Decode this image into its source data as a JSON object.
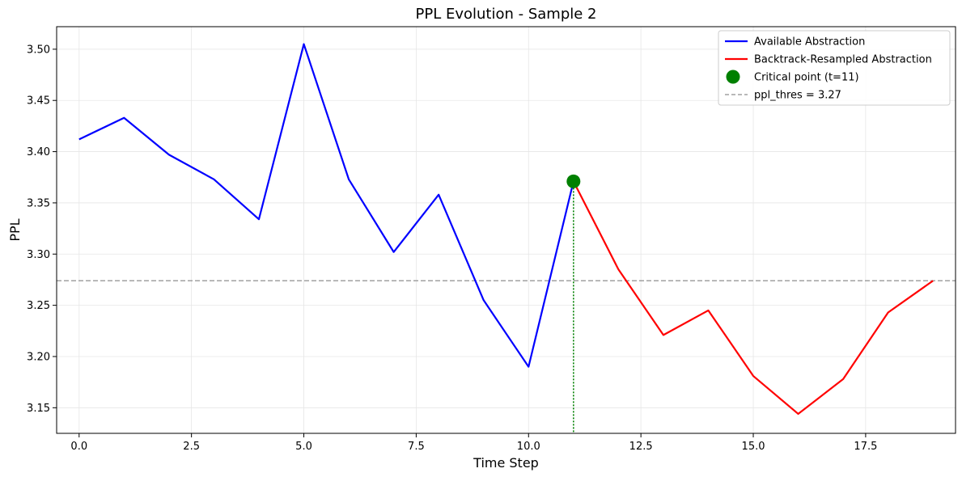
{
  "chart_data": {
    "type": "line",
    "title": "PPL Evolution - Sample 2",
    "xlabel": "Time Step",
    "ylabel": "PPL",
    "xlim": [
      -0.5,
      19.5
    ],
    "ylim": [
      3.125,
      3.522
    ],
    "xticks": [
      0.0,
      2.5,
      5.0,
      7.5,
      10.0,
      12.5,
      15.0,
      17.5
    ],
    "xtick_labels": [
      "0.0",
      "2.5",
      "5.0",
      "7.5",
      "10.0",
      "12.5",
      "15.0",
      "17.5"
    ],
    "yticks": [
      3.15,
      3.2,
      3.25,
      3.3,
      3.35,
      3.4,
      3.45,
      3.5
    ],
    "ytick_labels": [
      "3.15",
      "3.20",
      "3.25",
      "3.30",
      "3.35",
      "3.40",
      "3.45",
      "3.50"
    ],
    "grid": true,
    "legend_position": "top-right",
    "series": [
      {
        "name": "Available Abstraction",
        "color": "#0000ff",
        "x": [
          0,
          1,
          2,
          3,
          4,
          5,
          6,
          7,
          8,
          9,
          10,
          11
        ],
        "y": [
          3.412,
          3.433,
          3.397,
          3.373,
          3.334,
          3.505,
          3.373,
          3.302,
          3.358,
          3.255,
          3.19,
          3.371
        ]
      },
      {
        "name": "Backtrack-Resampled Abstraction",
        "color": "#ff0000",
        "x": [
          11,
          12,
          13,
          14,
          15,
          16,
          17,
          18,
          19
        ],
        "y": [
          3.371,
          3.285,
          3.221,
          3.245,
          3.181,
          3.144,
          3.178,
          3.243,
          3.274
        ]
      }
    ],
    "critical_point": {
      "label": "Critical point (t=11)",
      "x": 11,
      "y": 3.371,
      "color": "#008000"
    },
    "threshold": {
      "label": "ppl_thres = 3.27",
      "value": 3.274,
      "color": "#a0a0a0"
    }
  }
}
